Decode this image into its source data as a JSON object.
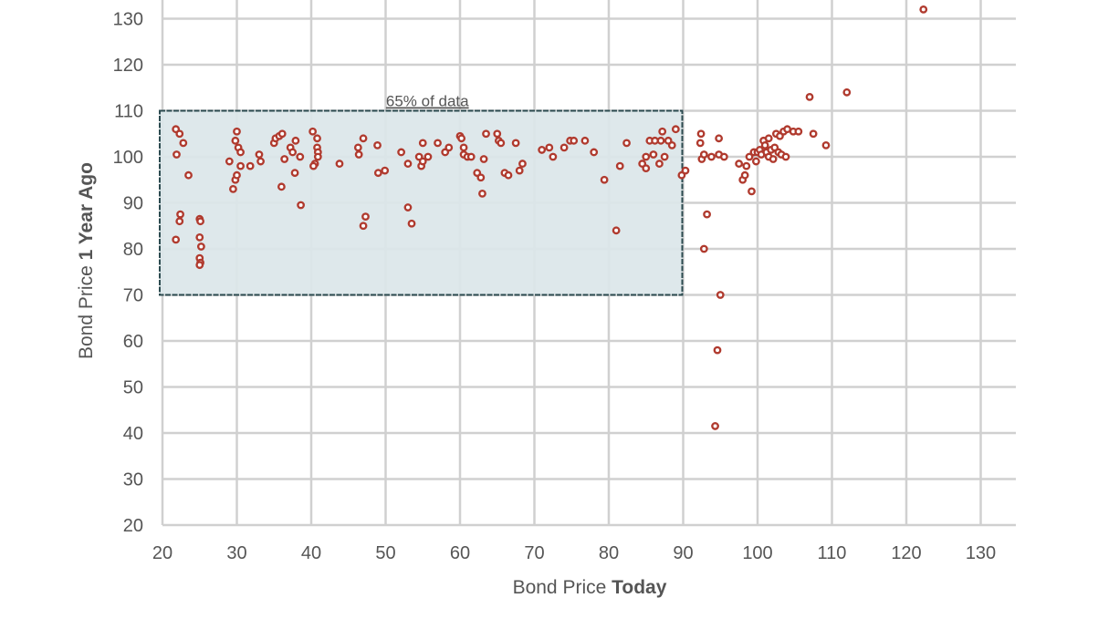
{
  "chart_data": {
    "type": "scatter",
    "title": "",
    "xlabel": {
      "plain": "Bond Price ",
      "bold": "Today"
    },
    "ylabel": {
      "plain": "Bond Price ",
      "bold": "1 Year Ago"
    },
    "xlim": [
      20,
      130
    ],
    "ylim": [
      20,
      130
    ],
    "xticks": [
      20,
      30,
      40,
      50,
      60,
      70,
      80,
      90,
      100,
      110,
      120,
      130
    ],
    "yticks": [
      20,
      30,
      40,
      50,
      60,
      70,
      80,
      90,
      100,
      110,
      120,
      130
    ],
    "grid": true,
    "colors": {
      "point": "#b03a2e",
      "region_fill": "#dbe6e9",
      "region_stroke": "#2b4a4f",
      "grid": "#d0d0d0"
    },
    "highlight_region": {
      "label": "65% of data",
      "x": [
        20,
        90
      ],
      "y": [
        70,
        110
      ]
    },
    "points": [
      [
        21.8,
        106
      ],
      [
        22.3,
        105
      ],
      [
        22.8,
        103
      ],
      [
        21.9,
        100.5
      ],
      [
        23.5,
        96
      ],
      [
        22.4,
        87.5
      ],
      [
        22.3,
        86
      ],
      [
        21.8,
        82
      ],
      [
        25,
        86.5
      ],
      [
        25.1,
        86
      ],
      [
        25,
        82.5
      ],
      [
        25.2,
        80.5
      ],
      [
        25,
        78
      ],
      [
        25.1,
        77
      ],
      [
        25,
        76.5
      ],
      [
        29,
        99
      ],
      [
        29.5,
        93
      ],
      [
        29.8,
        95
      ],
      [
        30,
        96
      ],
      [
        29.8,
        103.5
      ],
      [
        30.2,
        102
      ],
      [
        30.5,
        101
      ],
      [
        30,
        105.5
      ],
      [
        30.5,
        98
      ],
      [
        31.8,
        98
      ],
      [
        33,
        100.5
      ],
      [
        33.2,
        99
      ],
      [
        35,
        103
      ],
      [
        35.2,
        104
      ],
      [
        35.7,
        104.5
      ],
      [
        36.1,
        105
      ],
      [
        36.4,
        99.5
      ],
      [
        36,
        93.5
      ],
      [
        37.2,
        102
      ],
      [
        37.5,
        101
      ],
      [
        37.9,
        103.5
      ],
      [
        37.8,
        96.5
      ],
      [
        38.5,
        100
      ],
      [
        38.6,
        89.5
      ],
      [
        40.2,
        105.5
      ],
      [
        40.5,
        98.5
      ],
      [
        40.3,
        98
      ],
      [
        40.8,
        104
      ],
      [
        40.8,
        102
      ],
      [
        40.9,
        101
      ],
      [
        40.9,
        100
      ],
      [
        43.8,
        98.5
      ],
      [
        46.3,
        102
      ],
      [
        46.4,
        100.5
      ],
      [
        47,
        104
      ],
      [
        47,
        85
      ],
      [
        47.3,
        87
      ],
      [
        48.9,
        102.5
      ],
      [
        49,
        96.5
      ],
      [
        49.9,
        97
      ],
      [
        52.1,
        101
      ],
      [
        53,
        89
      ],
      [
        53,
        98.5
      ],
      [
        53.5,
        85.5
      ],
      [
        54.5,
        100
      ],
      [
        54.8,
        98
      ],
      [
        55,
        99
      ],
      [
        55,
        103
      ],
      [
        55.7,
        100
      ],
      [
        57,
        103
      ],
      [
        58,
        101
      ],
      [
        58.5,
        102
      ],
      [
        60,
        104.5
      ],
      [
        60.2,
        104
      ],
      [
        60.5,
        102
      ],
      [
        60.5,
        100.5
      ],
      [
        61,
        100
      ],
      [
        61.5,
        100
      ],
      [
        62.3,
        96.5
      ],
      [
        62.8,
        95.5
      ],
      [
        63,
        92
      ],
      [
        63.2,
        99.5
      ],
      [
        63.5,
        105
      ],
      [
        65,
        105
      ],
      [
        65.2,
        103.5
      ],
      [
        65.5,
        103
      ],
      [
        66,
        96.5
      ],
      [
        66.5,
        96
      ],
      [
        67.5,
        103
      ],
      [
        68,
        97
      ],
      [
        68.4,
        98.5
      ],
      [
        71,
        101.5
      ],
      [
        72,
        102
      ],
      [
        72.5,
        100
      ],
      [
        74,
        102
      ],
      [
        74.8,
        103.5
      ],
      [
        75.3,
        103.5
      ],
      [
        76.8,
        103.5
      ],
      [
        78,
        101
      ],
      [
        79.4,
        95
      ],
      [
        81,
        84
      ],
      [
        81.5,
        98
      ],
      [
        82.4,
        103
      ],
      [
        84.5,
        98.5
      ],
      [
        85,
        100
      ],
      [
        85.5,
        103.5
      ],
      [
        85,
        97.5
      ],
      [
        86,
        100.5
      ],
      [
        86.2,
        103.5
      ],
      [
        86.8,
        98.5
      ],
      [
        87,
        103.5
      ],
      [
        87.2,
        105.5
      ],
      [
        87.5,
        100
      ],
      [
        88,
        103.5
      ],
      [
        88.5,
        102.5
      ],
      [
        89,
        106
      ],
      [
        89.8,
        96
      ],
      [
        90.3,
        97
      ],
      [
        92.4,
        105
      ],
      [
        92.3,
        103
      ],
      [
        92.5,
        99.5
      ],
      [
        92.8,
        100.5
      ],
      [
        92.8,
        80
      ],
      [
        93.2,
        87.5
      ],
      [
        93.8,
        100
      ],
      [
        94.3,
        41.5
      ],
      [
        94.6,
        58
      ],
      [
        94.8,
        104
      ],
      [
        94.8,
        100.5
      ],
      [
        95,
        70
      ],
      [
        95.5,
        100
      ],
      [
        97.5,
        98.5
      ],
      [
        98,
        95
      ],
      [
        98.3,
        96
      ],
      [
        98.5,
        98
      ],
      [
        98.9,
        100
      ],
      [
        99.2,
        92.5
      ],
      [
        99.5,
        101
      ],
      [
        99.8,
        99
      ],
      [
        100,
        101
      ],
      [
        100.3,
        101.5
      ],
      [
        100.5,
        100.5
      ],
      [
        100.8,
        103.5
      ],
      [
        101,
        102.5
      ],
      [
        101.2,
        101
      ],
      [
        101.5,
        104
      ],
      [
        101.5,
        100
      ],
      [
        101.8,
        101.5
      ],
      [
        102.1,
        99.5
      ],
      [
        102.3,
        102
      ],
      [
        102.5,
        105
      ],
      [
        102.8,
        101
      ],
      [
        103,
        104.5
      ],
      [
        103.2,
        100.5
      ],
      [
        103.5,
        105.5
      ],
      [
        103.8,
        100
      ],
      [
        104,
        106
      ],
      [
        104.8,
        105.5
      ],
      [
        105.5,
        105.5
      ],
      [
        107,
        113
      ],
      [
        107.5,
        105
      ],
      [
        109.2,
        102.5
      ],
      [
        112,
        114
      ],
      [
        122.3,
        132
      ]
    ]
  }
}
